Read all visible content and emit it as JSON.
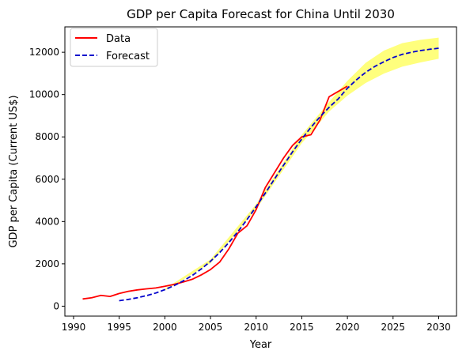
{
  "chart_data": {
    "type": "line",
    "title": "GDP per Capita Forecast for China Until 2030",
    "xlabel": "Year",
    "ylabel": "GDP per Capita (Current US$)",
    "xlim": [
      1989.05,
      2031.95
    ],
    "ylim": [
      -470,
      13200
    ],
    "xticks": [
      1990,
      1995,
      2000,
      2005,
      2010,
      2015,
      2020,
      2025,
      2030
    ],
    "yticks": [
      0,
      2000,
      4000,
      6000,
      8000,
      10000,
      12000
    ],
    "grid": false,
    "legend": {
      "position": "top-left",
      "entries": [
        "Data",
        "Forecast"
      ]
    },
    "series": [
      {
        "name": "Data",
        "color": "#ff0000",
        "style": "solid",
        "x": [
          1991,
          1992,
          1993,
          1994,
          1995,
          1996,
          1997,
          1998,
          1999,
          2000,
          2001,
          2002,
          2003,
          2004,
          2005,
          2006,
          2007,
          2008,
          2009,
          2010,
          2011,
          2012,
          2013,
          2014,
          2015,
          2016,
          2017,
          2018,
          2019,
          2020
        ],
        "y": [
          340,
          400,
          510,
          460,
          600,
          700,
          770,
          820,
          860,
          940,
          1030,
          1140,
          1270,
          1480,
          1730,
          2080,
          2700,
          3450,
          3800,
          4560,
          5600,
          6300,
          7000,
          7600,
          8000,
          8100,
          8800,
          9900,
          10150,
          10400
        ]
      },
      {
        "name": "Forecast",
        "color": "#0000cc",
        "style": "dashed",
        "x": [
          1995,
          1996,
          1997,
          1998,
          1999,
          2000,
          2001,
          2002,
          2003,
          2004,
          2005,
          2006,
          2007,
          2008,
          2009,
          2010,
          2011,
          2012,
          2013,
          2014,
          2015,
          2016,
          2017,
          2018,
          2019,
          2020,
          2021,
          2022,
          2023,
          2024,
          2025,
          2026,
          2027,
          2028,
          2029,
          2030
        ],
        "y": [
          260,
          320,
          400,
          500,
          620,
          780,
          970,
          1190,
          1450,
          1760,
          2120,
          2530,
          3000,
          3520,
          4090,
          4700,
          5340,
          6000,
          6660,
          7300,
          7900,
          8450,
          8950,
          9400,
          9800,
          10300,
          10700,
          11050,
          11330,
          11550,
          11750,
          11900,
          12000,
          12080,
          12140,
          12190
        ]
      }
    ],
    "confidence_band": {
      "color": "#ffff66",
      "x": [
        2000,
        2005,
        2010,
        2015,
        2018,
        2020,
        2022,
        2024,
        2026,
        2028,
        2030
      ],
      "lower": [
        740,
        2030,
        4580,
        7700,
        9200,
        9950,
        10550,
        10990,
        11320,
        11520,
        11690
      ],
      "upper": [
        820,
        2210,
        4820,
        8100,
        9650,
        10650,
        11500,
        12080,
        12430,
        12590,
        12690
      ]
    }
  }
}
